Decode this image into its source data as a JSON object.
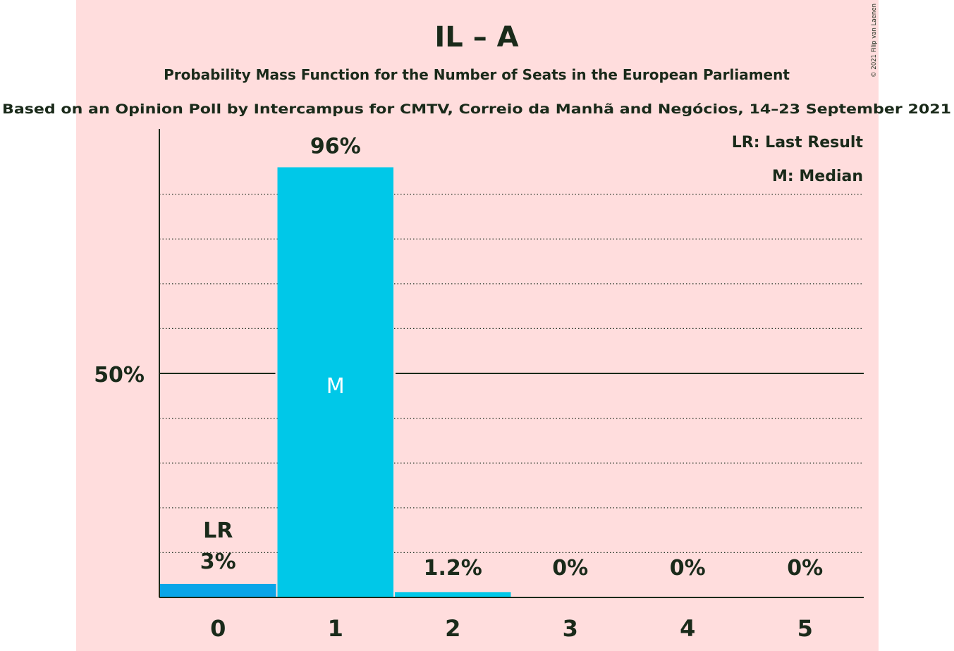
{
  "copyright": "© 2021 Filip van Laenen",
  "chart_data": {
    "type": "bar",
    "title": "IL – A",
    "subtitle": "Probability Mass Function for the Number of Seats in the European Parliament",
    "source": "Based on an Opinion Poll by Intercampus for CMTV, Correio da Manhã and Negócios, 14–23 September 2021",
    "categories": [
      "0",
      "1",
      "2",
      "3",
      "4",
      "5"
    ],
    "values": [
      3,
      96,
      1.2,
      0,
      0,
      0
    ],
    "value_labels": [
      "3%",
      "96%",
      "1.2%",
      "0%",
      "0%",
      "0%"
    ],
    "ylim": [
      0,
      100
    ],
    "y_tick_label": "50%",
    "y_tick_value": 50,
    "gridlines": [
      10,
      20,
      30,
      40,
      60,
      70,
      80,
      90
    ],
    "last_result_index": 0,
    "median_index": 1,
    "bar_markers": {
      "last_result": "LR",
      "median": "M"
    },
    "legend": [
      "LR: Last Result",
      "M: Median"
    ],
    "legend_position": "top-right",
    "colors": {
      "background": "#ffdddd",
      "bar_last_result": "#0aa5e8",
      "bar_default": "#00c8e8",
      "text": "#1a2a1a"
    }
  }
}
